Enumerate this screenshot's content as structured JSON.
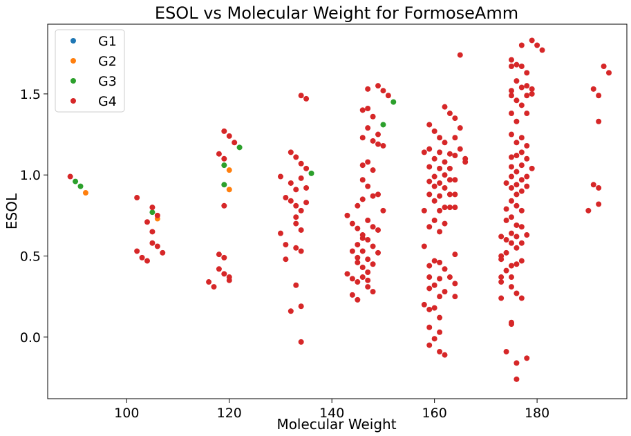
{
  "chart_data": {
    "type": "scatter",
    "title": "ESOL vs Molecular Weight for FormoseAmm",
    "xlabel": "Molecular Weight",
    "ylabel": "ESOL",
    "xlim": [
      84.6,
      197.5
    ],
    "ylim": [
      -0.38,
      1.93
    ],
    "xticks": [
      100,
      120,
      140,
      160,
      180
    ],
    "yticks": [
      0.0,
      0.5,
      1.0,
      1.5
    ],
    "ytick_labels": [
      "0.0",
      "0.5",
      "1.0",
      "1.5"
    ],
    "legend_position": "top-left",
    "series": [
      {
        "name": "G1",
        "color": "#1f77b4",
        "points": []
      },
      {
        "name": "G2",
        "color": "#ff7f0e",
        "points": [
          [
            92,
            0.89
          ],
          [
            106,
            0.73
          ],
          [
            120,
            1.03
          ],
          [
            120,
            0.91
          ]
        ]
      },
      {
        "name": "G3",
        "color": "#2ca02c",
        "points": [
          [
            90,
            0.96
          ],
          [
            91,
            0.93
          ],
          [
            105,
            0.77
          ],
          [
            119,
            1.06
          ],
          [
            119,
            0.94
          ],
          [
            122,
            1.17
          ],
          [
            136,
            1.01
          ],
          [
            150,
            1.31
          ],
          [
            152,
            1.45
          ]
        ]
      },
      {
        "name": "G4",
        "color": "#d62728",
        "points": [
          [
            89,
            0.99
          ],
          [
            102,
            0.86
          ],
          [
            102,
            0.53
          ],
          [
            103,
            0.49
          ],
          [
            104,
            0.47
          ],
          [
            104,
            0.71
          ],
          [
            105,
            0.8
          ],
          [
            105,
            0.65
          ],
          [
            105,
            0.58
          ],
          [
            106,
            0.56
          ],
          [
            106,
            0.75
          ],
          [
            107,
            0.52
          ],
          [
            116,
            0.34
          ],
          [
            117,
            0.31
          ],
          [
            118,
            1.13
          ],
          [
            118,
            0.51
          ],
          [
            118,
            0.42
          ],
          [
            119,
            1.27
          ],
          [
            119,
            1.1
          ],
          [
            119,
            0.81
          ],
          [
            119,
            0.49
          ],
          [
            119,
            0.39
          ],
          [
            120,
            1.24
          ],
          [
            120,
            0.37
          ],
          [
            120,
            0.35
          ],
          [
            121,
            1.2
          ],
          [
            130,
            0.99
          ],
          [
            130,
            0.64
          ],
          [
            131,
            0.86
          ],
          [
            131,
            0.57
          ],
          [
            131,
            0.48
          ],
          [
            132,
            1.14
          ],
          [
            132,
            0.95
          ],
          [
            132,
            0.84
          ],
          [
            132,
            0.16
          ],
          [
            133,
            1.11
          ],
          [
            133,
            0.91
          ],
          [
            133,
            0.81
          ],
          [
            133,
            0.74
          ],
          [
            133,
            0.7
          ],
          [
            133,
            0.32
          ],
          [
            133,
            0.55
          ],
          [
            134,
            1.07
          ],
          [
            134,
            0.98
          ],
          [
            134,
            0.78
          ],
          [
            134,
            0.66
          ],
          [
            134,
            0.53
          ],
          [
            134,
            0.19
          ],
          [
            134,
            -0.03
          ],
          [
            134,
            1.49
          ],
          [
            135,
            1.04
          ],
          [
            135,
            0.92
          ],
          [
            135,
            0.83
          ],
          [
            135,
            1.47
          ],
          [
            143,
            0.75
          ],
          [
            143,
            0.39
          ],
          [
            144,
            0.7
          ],
          [
            144,
            0.53
          ],
          [
            144,
            0.36
          ],
          [
            144,
            0.26
          ],
          [
            145,
            0.81
          ],
          [
            145,
            0.67
          ],
          [
            145,
            0.57
          ],
          [
            145,
            0.49
          ],
          [
            145,
            0.46
          ],
          [
            145,
            0.34
          ],
          [
            145,
            0.23
          ],
          [
            146,
            1.23
          ],
          [
            146,
            1.4
          ],
          [
            146,
            1.06
          ],
          [
            146,
            0.97
          ],
          [
            146,
            0.85
          ],
          [
            146,
            0.63
          ],
          [
            146,
            0.61
          ],
          [
            146,
            0.53
          ],
          [
            146,
            0.43
          ],
          [
            146,
            0.37
          ],
          [
            147,
            1.53
          ],
          [
            147,
            1.41
          ],
          [
            147,
            1.29
          ],
          [
            147,
            1.08
          ],
          [
            147,
            0.93
          ],
          [
            147,
            0.72
          ],
          [
            147,
            0.6
          ],
          [
            147,
            0.48
          ],
          [
            147,
            0.4
          ],
          [
            147,
            0.35
          ],
          [
            147,
            0.31
          ],
          [
            148,
            1.36
          ],
          [
            148,
            1.21
          ],
          [
            148,
            1.03
          ],
          [
            148,
            0.87
          ],
          [
            148,
            0.68
          ],
          [
            148,
            0.56
          ],
          [
            148,
            0.45
          ],
          [
            148,
            0.28
          ],
          [
            149,
            1.55
          ],
          [
            149,
            1.25
          ],
          [
            149,
            1.19
          ],
          [
            149,
            0.88
          ],
          [
            149,
            0.66
          ],
          [
            149,
            0.52
          ],
          [
            150,
            1.52
          ],
          [
            150,
            1.18
          ],
          [
            150,
            0.78
          ],
          [
            151,
            1.49
          ],
          [
            158,
            1.14
          ],
          [
            158,
            0.78
          ],
          [
            158,
            0.56
          ],
          [
            158,
            0.2
          ],
          [
            159,
            1.31
          ],
          [
            159,
            1.16
          ],
          [
            159,
            1.05
          ],
          [
            159,
            0.96
          ],
          [
            159,
            0.88
          ],
          [
            159,
            0.68
          ],
          [
            159,
            0.44
          ],
          [
            159,
            0.37
          ],
          [
            159,
            0.3
          ],
          [
            159,
            0.17
          ],
          [
            159,
            0.06
          ],
          [
            159,
            -0.05
          ],
          [
            160,
            1.27
          ],
          [
            160,
            1.1
          ],
          [
            160,
            0.99
          ],
          [
            160,
            0.93
          ],
          [
            160,
            0.84
          ],
          [
            160,
            0.72
          ],
          [
            160,
            0.47
          ],
          [
            160,
            0.32
          ],
          [
            160,
            0.18
          ],
          [
            160,
            -0.01
          ],
          [
            161,
            1.23
          ],
          [
            161,
            1.14
          ],
          [
            161,
            1.04
          ],
          [
            161,
            0.95
          ],
          [
            161,
            0.87
          ],
          [
            161,
            0.78
          ],
          [
            161,
            0.65
          ],
          [
            161,
            0.46
          ],
          [
            161,
            0.36
          ],
          [
            161,
            0.25
          ],
          [
            161,
            0.12
          ],
          [
            161,
            0.03
          ],
          [
            161,
            -0.09
          ],
          [
            162,
            1.42
          ],
          [
            162,
            1.2
          ],
          [
            162,
            1.08
          ],
          [
            162,
            1.0
          ],
          [
            162,
            0.92
          ],
          [
            162,
            0.8
          ],
          [
            162,
            0.7
          ],
          [
            162,
            0.42
          ],
          [
            162,
            0.28
          ],
          [
            162,
            -0.11
          ],
          [
            163,
            1.38
          ],
          [
            163,
            1.13
          ],
          [
            163,
            1.04
          ],
          [
            163,
            0.97
          ],
          [
            163,
            0.88
          ],
          [
            163,
            0.8
          ],
          [
            163,
            0.37
          ],
          [
            164,
            1.35
          ],
          [
            164,
            1.23
          ],
          [
            164,
            1.12
          ],
          [
            164,
            0.97
          ],
          [
            164,
            0.88
          ],
          [
            164,
            0.8
          ],
          [
            164,
            0.51
          ],
          [
            164,
            0.33
          ],
          [
            164,
            0.25
          ],
          [
            165,
            1.29
          ],
          [
            165,
            1.16
          ],
          [
            165,
            1.74
          ],
          [
            166,
            1.1
          ],
          [
            166,
            1.08
          ],
          [
            173,
            0.62
          ],
          [
            173,
            0.5
          ],
          [
            173,
            0.48
          ],
          [
            173,
            0.37
          ],
          [
            173,
            0.34
          ],
          [
            173,
            0.24
          ],
          [
            174,
            0.95
          ],
          [
            174,
            0.79
          ],
          [
            174,
            0.72
          ],
          [
            174,
            0.6
          ],
          [
            174,
            0.52
          ],
          [
            174,
            0.41
          ],
          [
            174,
            -0.09
          ],
          [
            175,
            1.71
          ],
          [
            175,
            1.67
          ],
          [
            175,
            1.52
          ],
          [
            175,
            1.49
          ],
          [
            175,
            1.38
          ],
          [
            175,
            1.25
          ],
          [
            175,
            1.11
          ],
          [
            175,
            1.05
          ],
          [
            175,
            0.99
          ],
          [
            175,
            0.92
          ],
          [
            175,
            0.84
          ],
          [
            175,
            0.74
          ],
          [
            175,
            0.64
          ],
          [
            175,
            0.58
          ],
          [
            175,
            0.44
          ],
          [
            175,
            0.37
          ],
          [
            175,
            0.31
          ],
          [
            175,
            0.09
          ],
          [
            175,
            0.08
          ],
          [
            176,
            1.68
          ],
          [
            176,
            1.58
          ],
          [
            176,
            1.46
          ],
          [
            176,
            1.33
          ],
          [
            176,
            1.2
          ],
          [
            176,
            1.12
          ],
          [
            176,
            1.02
          ],
          [
            176,
            0.94
          ],
          [
            176,
            0.88
          ],
          [
            176,
            0.81
          ],
          [
            176,
            0.69
          ],
          [
            176,
            0.62
          ],
          [
            176,
            0.55
          ],
          [
            176,
            0.45
          ],
          [
            176,
            0.27
          ],
          [
            176,
            -0.16
          ],
          [
            176,
            -0.26
          ],
          [
            177,
            1.8
          ],
          [
            177,
            1.67
          ],
          [
            177,
            1.54
          ],
          [
            177,
            1.43
          ],
          [
            177,
            1.23
          ],
          [
            177,
            1.14
          ],
          [
            177,
            1.06
          ],
          [
            177,
            0.97
          ],
          [
            177,
            0.9
          ],
          [
            177,
            0.78
          ],
          [
            177,
            0.68
          ],
          [
            177,
            0.58
          ],
          [
            177,
            0.47
          ],
          [
            177,
            0.24
          ],
          [
            178,
            1.63
          ],
          [
            178,
            1.55
          ],
          [
            178,
            1.49
          ],
          [
            178,
            1.38
          ],
          [
            178,
            1.18
          ],
          [
            178,
            1.1
          ],
          [
            178,
            0.99
          ],
          [
            178,
            0.93
          ],
          [
            178,
            0.63
          ],
          [
            178,
            -0.13
          ],
          [
            179,
            1.83
          ],
          [
            179,
            1.53
          ],
          [
            179,
            1.5
          ],
          [
            179,
            1.04
          ],
          [
            180,
            1.8
          ],
          [
            181,
            1.77
          ],
          [
            190,
            0.78
          ],
          [
            191,
            1.53
          ],
          [
            191,
            0.94
          ],
          [
            192,
            1.49
          ],
          [
            192,
            1.33
          ],
          [
            192,
            0.92
          ],
          [
            192,
            0.82
          ],
          [
            193,
            1.67
          ],
          [
            194,
            1.63
          ]
        ]
      }
    ]
  }
}
